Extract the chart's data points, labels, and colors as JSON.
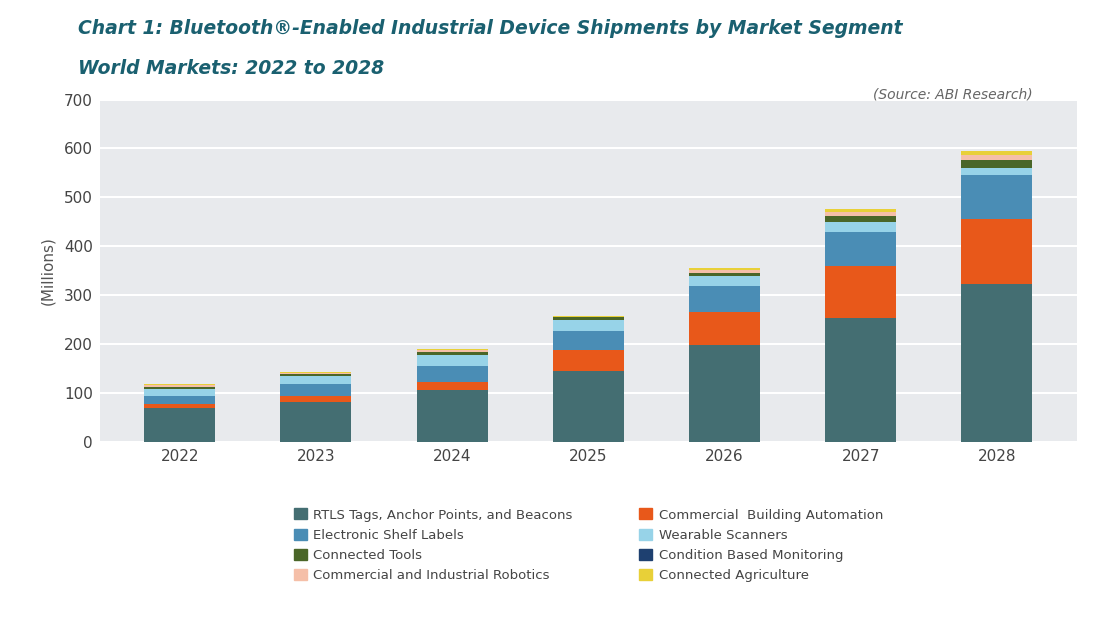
{
  "years": [
    2022,
    2023,
    2024,
    2025,
    2026,
    2027,
    2028
  ],
  "title_line1": "Chart 1: Bluetooth®-Enabled Industrial Device Shipments by Market Segment",
  "title_line2": "World Markets: 2022 to 2028",
  "source": "(Source: ABI Research)",
  "ylabel": "(Millions)",
  "ylim": [
    0,
    700
  ],
  "yticks": [
    0,
    100,
    200,
    300,
    400,
    500,
    600,
    700
  ],
  "bar_width": 0.52,
  "fig_bg": "#ffffff",
  "plot_bg": "#e8eaed",
  "grid_color": "#ffffff",
  "segment_order": [
    {
      "label": "RTLS Tags, Anchor Points, and Beacons",
      "color": "#446e72",
      "values": [
        68,
        82,
        105,
        145,
        198,
        252,
        322
      ]
    },
    {
      "label": "Commercial  Building Automation",
      "color": "#e8581a",
      "values": [
        10,
        12,
        18,
        42,
        68,
        108,
        133
      ]
    },
    {
      "label": "Electronic Shelf Labels",
      "color": "#4a8db5",
      "values": [
        16,
        24,
        32,
        40,
        52,
        68,
        90
      ]
    },
    {
      "label": "Wearable Scanners",
      "color": "#97d3e8",
      "values": [
        14,
        16,
        22,
        22,
        20,
        22,
        14
      ]
    },
    {
      "label": "Condition Based Monitoring",
      "color": "#1e4070",
      "values": [
        0,
        0,
        0,
        0,
        0,
        0,
        0
      ]
    },
    {
      "label": "Connected Tools",
      "color": "#4a6628",
      "values": [
        4,
        4,
        6,
        5,
        8,
        12,
        18
      ]
    },
    {
      "label": "Commercial and Industrial Robotics",
      "color": "#f5bfa8",
      "values": [
        3,
        2,
        4,
        2,
        5,
        8,
        10
      ]
    },
    {
      "label": "Connected Agriculture",
      "color": "#e8d038",
      "values": [
        2,
        2,
        3,
        2,
        4,
        6,
        8
      ]
    }
  ],
  "legend_col1": [
    {
      "label": "RTLS Tags, Anchor Points, and Beacons",
      "color": "#446e72"
    },
    {
      "label": "Electronic Shelf Labels",
      "color": "#4a8db5"
    },
    {
      "label": "Connected Tools",
      "color": "#4a6628"
    },
    {
      "label": "Commercial and Industrial Robotics",
      "color": "#f5bfa8"
    }
  ],
  "legend_col2": [
    {
      "label": "Commercial  Building Automation",
      "color": "#e8581a"
    },
    {
      "label": "Wearable Scanners",
      "color": "#97d3e8"
    },
    {
      "label": "Condition Based Monitoring",
      "color": "#1e4070"
    },
    {
      "label": "Connected Agriculture",
      "color": "#e8d038"
    }
  ]
}
